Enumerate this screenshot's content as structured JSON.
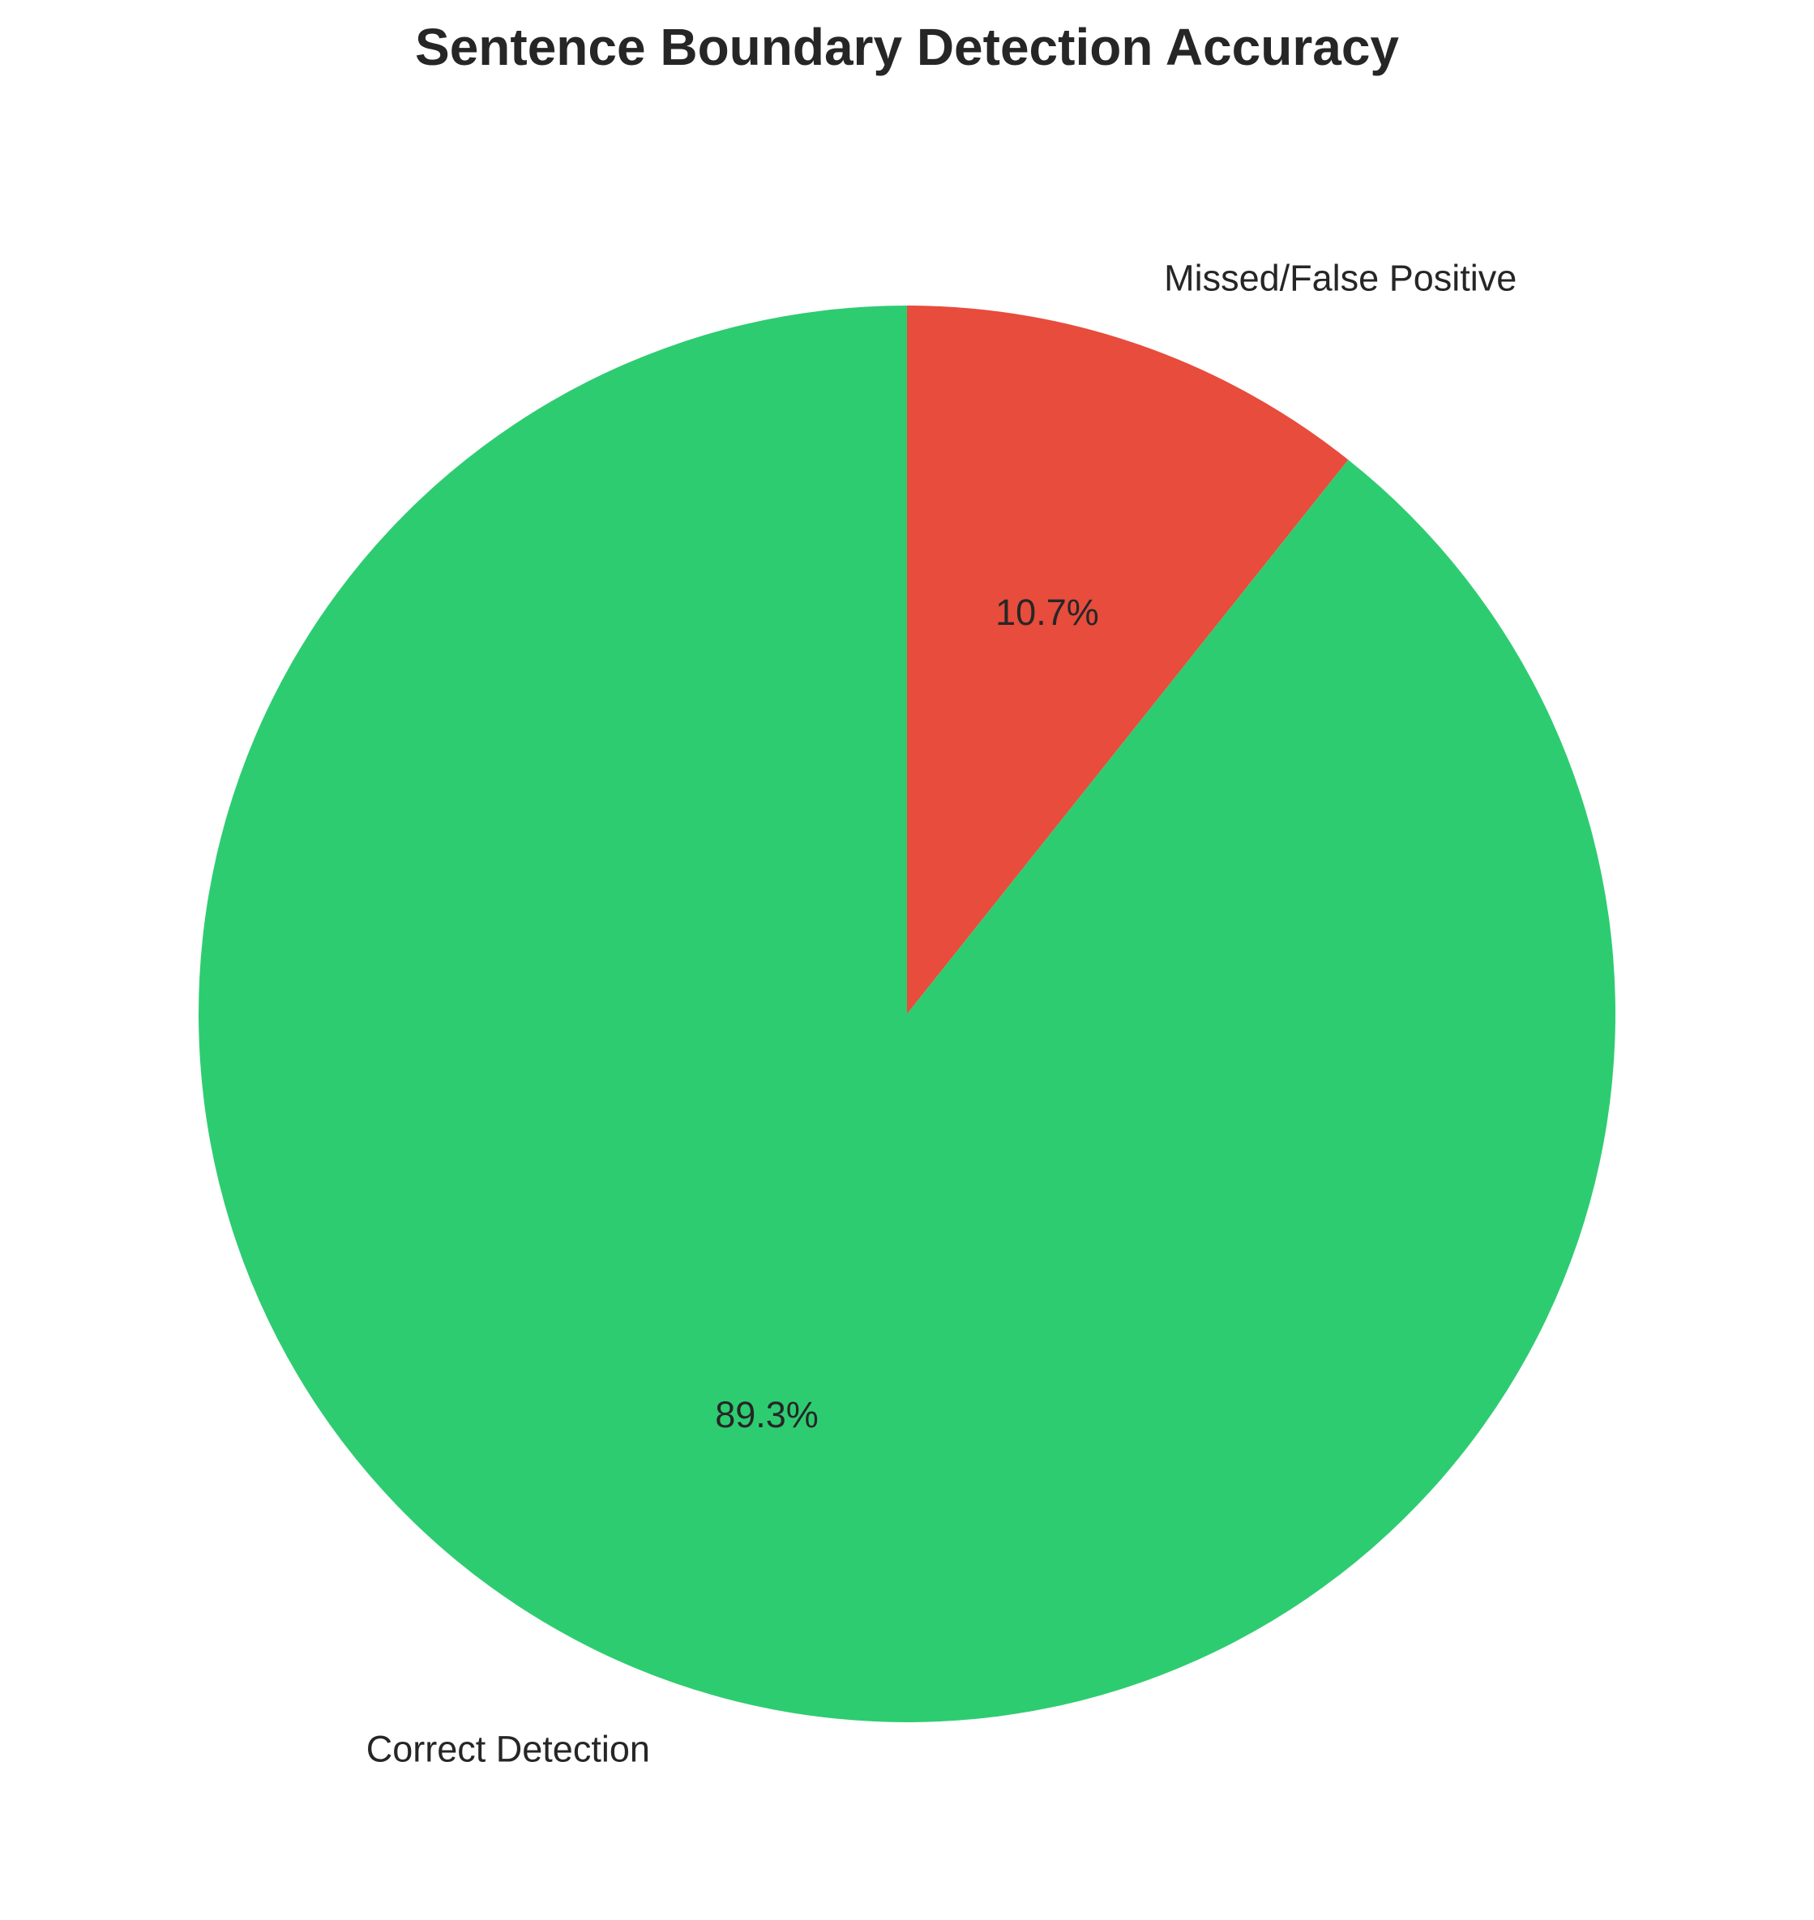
{
  "chart_data": {
    "type": "pie",
    "title": "Sentence Boundary Detection Accuracy",
    "categories": [
      "Correct Detection",
      "Missed/False Positive"
    ],
    "values": [
      89.3,
      10.7
    ],
    "value_labels": [
      "89.3%",
      "10.7%"
    ],
    "colors": [
      "#2ecc71",
      "#e74c3c"
    ],
    "start_angle": "top",
    "direction": "counterclockwise",
    "legend": "none"
  }
}
